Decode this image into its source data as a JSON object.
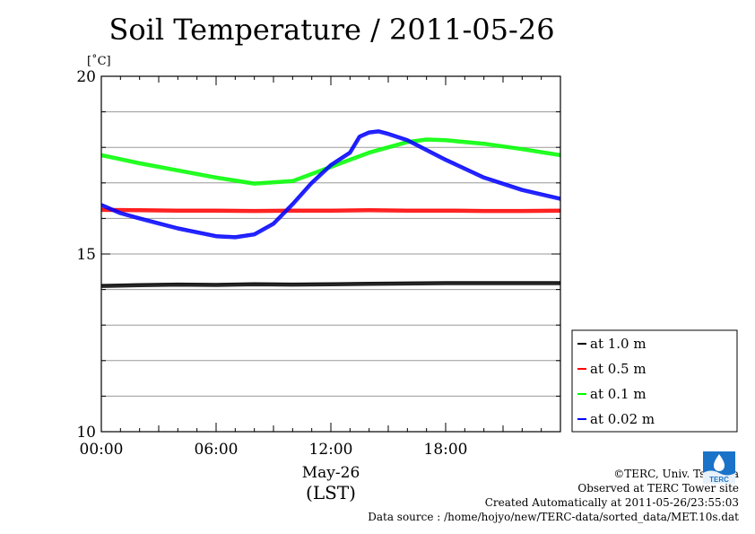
{
  "chart_data": {
    "type": "line",
    "title": "Soil Temperature / 2011-05-26",
    "ylabel": "[˚C]",
    "xlabel": "May-26",
    "xlabel2": "(LST)",
    "xlim": [
      0,
      24
    ],
    "ylim": [
      10,
      20
    ],
    "x_ticks": [
      {
        "value": 0,
        "label": "00:00"
      },
      {
        "value": 6,
        "label": "06:00"
      },
      {
        "value": 12,
        "label": "12:00"
      },
      {
        "value": 18,
        "label": "18:00"
      }
    ],
    "y_ticks": [
      {
        "value": 10,
        "label": "10"
      },
      {
        "value": 15,
        "label": "15"
      },
      {
        "value": 20,
        "label": "20"
      }
    ],
    "grid": true,
    "legend_position": "right-bottom",
    "series": [
      {
        "name": "at 1.0 m",
        "color": "#000000",
        "points": [
          [
            0,
            14.1
          ],
          [
            2,
            14.12
          ],
          [
            4,
            14.14
          ],
          [
            6,
            14.13
          ],
          [
            8,
            14.15
          ],
          [
            10,
            14.14
          ],
          [
            12,
            14.15
          ],
          [
            14,
            14.16
          ],
          [
            16,
            14.17
          ],
          [
            18,
            14.18
          ],
          [
            20,
            14.18
          ],
          [
            22,
            14.18
          ],
          [
            24,
            14.18
          ]
        ]
      },
      {
        "name": "at 0.5 m",
        "color": "#ff0000",
        "points": [
          [
            0,
            16.24
          ],
          [
            2,
            16.23
          ],
          [
            4,
            16.22
          ],
          [
            6,
            16.22
          ],
          [
            8,
            16.21
          ],
          [
            10,
            16.22
          ],
          [
            12,
            16.22
          ],
          [
            14,
            16.23
          ],
          [
            16,
            16.22
          ],
          [
            18,
            16.22
          ],
          [
            20,
            16.21
          ],
          [
            22,
            16.21
          ],
          [
            24,
            16.22
          ]
        ]
      },
      {
        "name": "at 0.1 m",
        "color": "#00ff00",
        "points": [
          [
            0,
            17.78
          ],
          [
            2,
            17.55
          ],
          [
            4,
            17.35
          ],
          [
            6,
            17.15
          ],
          [
            8,
            16.98
          ],
          [
            10,
            17.05
          ],
          [
            12,
            17.45
          ],
          [
            14,
            17.85
          ],
          [
            16,
            18.15
          ],
          [
            17,
            18.22
          ],
          [
            18,
            18.2
          ],
          [
            20,
            18.1
          ],
          [
            22,
            17.95
          ],
          [
            24,
            17.78
          ]
        ]
      },
      {
        "name": "at 0.02 m",
        "color": "#0000ff",
        "points": [
          [
            0,
            16.38
          ],
          [
            1,
            16.15
          ],
          [
            2,
            16.0
          ],
          [
            4,
            15.72
          ],
          [
            6,
            15.5
          ],
          [
            7,
            15.47
          ],
          [
            8,
            15.55
          ],
          [
            9,
            15.85
          ],
          [
            10,
            16.4
          ],
          [
            11,
            17.0
          ],
          [
            12,
            17.5
          ],
          [
            13,
            17.85
          ],
          [
            13.5,
            18.3
          ],
          [
            14,
            18.42
          ],
          [
            14.5,
            18.45
          ],
          [
            15,
            18.38
          ],
          [
            16,
            18.2
          ],
          [
            18,
            17.65
          ],
          [
            20,
            17.15
          ],
          [
            22,
            16.8
          ],
          [
            24,
            16.55
          ]
        ]
      }
    ]
  },
  "credits": {
    "copyright": "©TERC, Univ. Tsukuba",
    "observed": "Observed at TERC Tower site",
    "created": "Created Automatically at 2011-05-26/23:55:03",
    "source": "Data source : /home/hojyo/new/TERC-data/sorted_data/MET.10s.dat"
  },
  "logo": {
    "text": "TERC",
    "color": "#1a73c9"
  }
}
